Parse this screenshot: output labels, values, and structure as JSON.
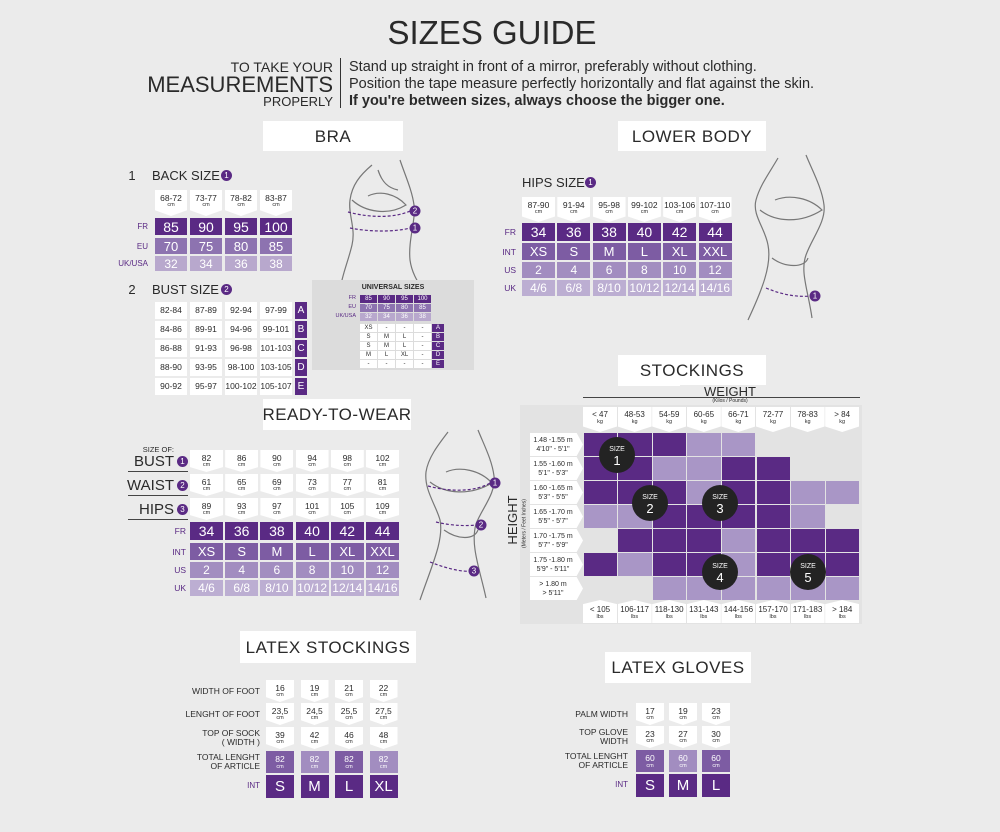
{
  "header": {
    "title": "SIZES GUIDE",
    "intro": [
      "TO TAKE YOUR",
      "MEASUREMENTS",
      "PROPERLY"
    ],
    "instructions": [
      "Stand up straight in front of a mirror, preferably without clothing.",
      "Position the tape measure perfectly horizontally and flat against the skin.",
      "If you're between sizes, always choose the bigger one."
    ]
  },
  "units": {
    "cm": "cm",
    "kg": "kg",
    "lbs": "lbs"
  },
  "bra": {
    "title": "BRA",
    "back_size": {
      "number": "1",
      "label": "BACK SIZE",
      "badge": "1",
      "cm": [
        "68-72",
        "73-77",
        "78-82",
        "83-87"
      ],
      "rows": [
        {
          "label": "FR",
          "values": [
            85,
            90,
            95,
            100
          ]
        },
        {
          "label": "EU",
          "values": [
            70,
            75,
            80,
            85
          ]
        },
        {
          "label": "UK/USA",
          "values": [
            32,
            34,
            36,
            38
          ]
        }
      ]
    },
    "bust_size": {
      "number": "2",
      "label": "BUST SIZE",
      "badge": "2",
      "rows": [
        {
          "values": [
            "82-84",
            "87-89",
            "92-94",
            "97-99"
          ],
          "cup": "A"
        },
        {
          "values": [
            "84-86",
            "89-91",
            "94-96",
            "99-101"
          ],
          "cup": "B"
        },
        {
          "values": [
            "86-88",
            "91-93",
            "96-98",
            "101-103"
          ],
          "cup": "C"
        },
        {
          "values": [
            "88-90",
            "93-95",
            "98-100",
            "103-105"
          ],
          "cup": "D"
        },
        {
          "values": [
            "90-92",
            "95-97",
            "100-102",
            "105-107"
          ],
          "cup": "E"
        }
      ]
    },
    "universal_sizes": {
      "title": "UNIVERSAL SIZES",
      "rows": [
        {
          "label": "FR",
          "values": [
            85,
            90,
            95,
            100
          ]
        },
        {
          "label": "EU",
          "values": [
            70,
            75,
            80,
            85
          ]
        },
        {
          "label": "UK/USA",
          "values": [
            32,
            34,
            36,
            38
          ]
        }
      ],
      "grid": [
        [
          "XS",
          "-",
          "-",
          "-",
          "A"
        ],
        [
          "S",
          "M",
          "L",
          "-",
          "B"
        ],
        [
          "S",
          "M",
          "L",
          "-",
          "C"
        ],
        [
          "M",
          "L",
          "XL",
          "-",
          "D"
        ],
        [
          "-",
          "-",
          "-",
          "-",
          "E"
        ]
      ]
    }
  },
  "lower_body": {
    "title": "LOWER BODY",
    "hips_size": {
      "label": "HIPS SIZE",
      "badge": "1",
      "cm": [
        "87-90",
        "91-94",
        "95-98",
        "99-102",
        "103-106",
        "107-110"
      ],
      "rows": [
        {
          "label": "FR",
          "values": [
            34,
            36,
            38,
            40,
            42,
            44
          ]
        },
        {
          "label": "INT",
          "values": [
            "XS",
            "S",
            "M",
            "L",
            "XL",
            "XXL"
          ]
        },
        {
          "label": "US",
          "values": [
            2,
            4,
            6,
            8,
            10,
            12
          ]
        },
        {
          "label": "UK",
          "values": [
            "4/6",
            "6/8",
            "8/10",
            "10/12",
            "12/14",
            "14/16"
          ]
        }
      ]
    }
  },
  "ready_to_wear": {
    "title": "READY-TO-WEAR",
    "size_of": "SIZE OF:",
    "measures": [
      {
        "label": "BUST",
        "badge": "1",
        "cm": [
          82,
          86,
          90,
          94,
          98,
          102
        ]
      },
      {
        "label": "WAIST",
        "badge": "2",
        "cm": [
          61,
          65,
          69,
          73,
          77,
          81
        ]
      },
      {
        "label": "HIPS",
        "badge": "3",
        "cm": [
          89,
          93,
          97,
          101,
          105,
          109
        ]
      }
    ],
    "rows": [
      {
        "label": "FR",
        "values": [
          34,
          36,
          38,
          40,
          42,
          44
        ]
      },
      {
        "label": "INT",
        "values": [
          "XS",
          "S",
          "M",
          "L",
          "XL",
          "XXL"
        ]
      },
      {
        "label": "US",
        "values": [
          2,
          4,
          6,
          8,
          10,
          12
        ]
      },
      {
        "label": "UK",
        "values": [
          "4/6",
          "6/8",
          "8/10",
          "10/12",
          "12/14",
          "14/16"
        ]
      }
    ]
  },
  "stockings": {
    "title": "STOCKINGS",
    "weight": "WEIGHT",
    "weight_note": "(Kilos / Pounds)",
    "height": "HEIGHT",
    "height_note": "(Meters / Feet Inches)",
    "kg": [
      "< 47",
      "48-53",
      "54-59",
      "60-65",
      "66-71",
      "72-77",
      "78-83",
      "> 84"
    ],
    "lbs": [
      "< 105",
      "106-117",
      "118-130",
      "131-143",
      "144-156",
      "157-170",
      "171-183",
      "> 184"
    ],
    "heights": [
      {
        "m": "1.48 -1.55 m",
        "ft": "4'10\" - 5'1\""
      },
      {
        "m": "1.55 -1.60 m",
        "ft": "5'1\" - 5'3\""
      },
      {
        "m": "1.60 -1.65 m",
        "ft": "5'3\" - 5'5\""
      },
      {
        "m": "1.65 -1.70 m",
        "ft": "5'5\" - 5'7\""
      },
      {
        "m": "1.70 -1.75 m",
        "ft": "5'7\" - 5'9\""
      },
      {
        "m": "1.75 -1.80 m",
        "ft": "5'9\" - 5'11\""
      },
      {
        "m": "> 1.80 m",
        "ft": "> 5'11\""
      }
    ],
    "size_label": "SIZE",
    "sizes": [
      1,
      2,
      3,
      4,
      5
    ]
  },
  "latex_stockings": {
    "title": "LATEX STOCKINGS",
    "rows": [
      {
        "label": [
          "WIDTH OF FOOT"
        ],
        "values": [
          16,
          19,
          21,
          22
        ]
      },
      {
        "label": [
          "LENGHT OF FOOT"
        ],
        "values": [
          "23,5",
          "24,5",
          "25,5",
          "27,5"
        ]
      },
      {
        "label": [
          "TOP OF SOCK",
          "( WIDTH )"
        ],
        "values": [
          39,
          42,
          46,
          48
        ]
      },
      {
        "label": [
          "TOTAL LENGHT",
          "OF ARTICLE"
        ],
        "values": [
          82,
          82,
          82,
          82
        ]
      }
    ],
    "int": {
      "label": "INT",
      "values": [
        "S",
        "M",
        "L",
        "XL"
      ]
    }
  },
  "latex_gloves": {
    "title": "LATEX GLOVES",
    "rows": [
      {
        "label": [
          "PALM WIDTH"
        ],
        "values": [
          17,
          19,
          23
        ]
      },
      {
        "label": [
          "TOP GLOVE",
          "WIDTH"
        ],
        "values": [
          23,
          27,
          30
        ]
      },
      {
        "label": [
          "TOTAL LENGHT",
          "OF ARTICLE"
        ],
        "values": [
          60,
          60,
          60
        ]
      }
    ],
    "int": {
      "label": "INT",
      "values": [
        "S",
        "M",
        "L"
      ]
    }
  }
}
